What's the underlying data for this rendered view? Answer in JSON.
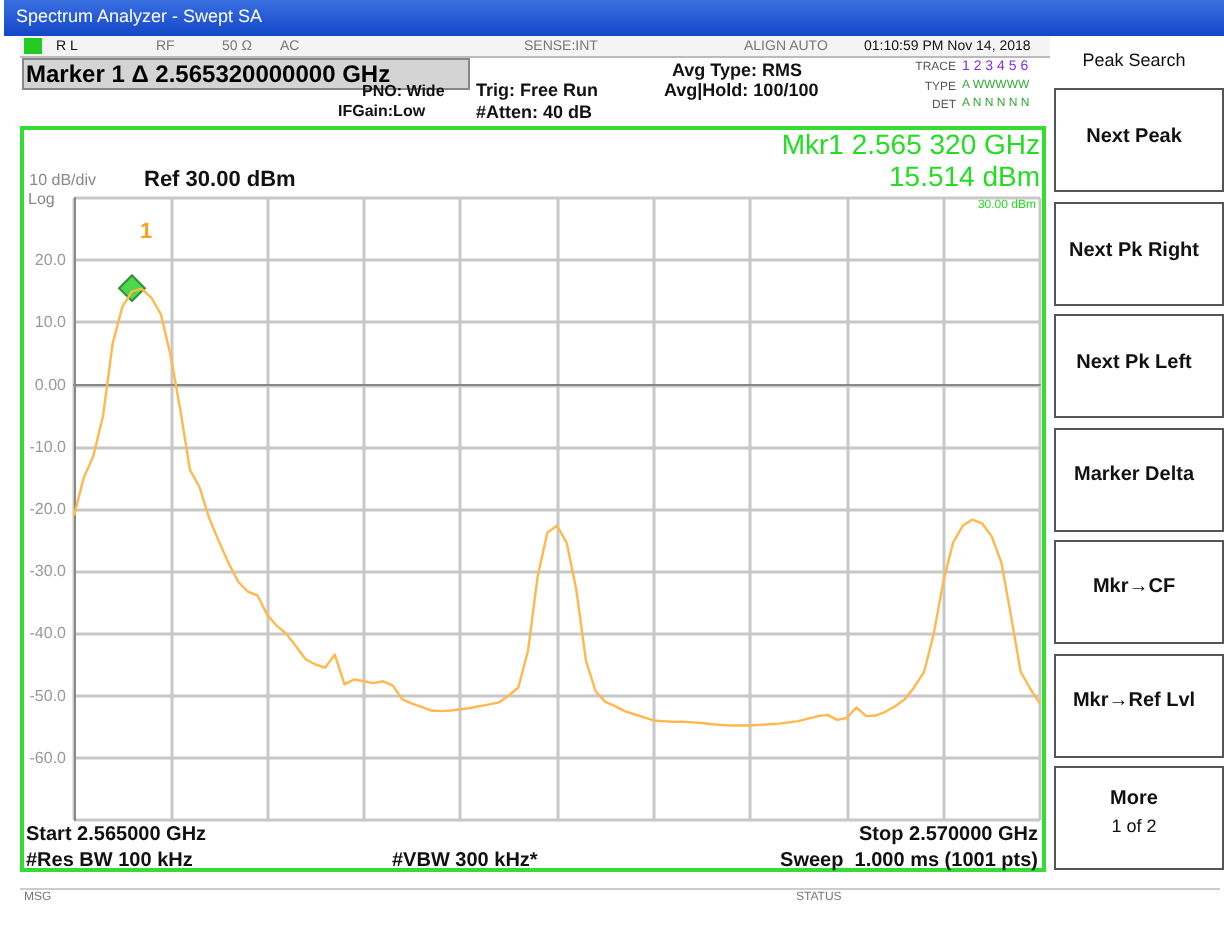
{
  "chart_data": {
    "type": "line",
    "title": "Spectrum Analyzer - Swept SA",
    "subtitle": "Marker 1 Δ 2.565320000000 GHz",
    "categories": [
      null,
      null,
      null,
      null,
      null,
      null,
      null,
      null,
      null,
      null,
      null,
      null,
      null,
      null,
      null,
      null,
      null,
      null,
      null,
      null,
      null,
      null,
      null,
      null,
      null,
      null,
      null,
      null,
      null,
      null,
      null,
      null,
      null,
      null,
      null,
      null,
      null,
      null,
      null,
      null,
      null,
      null,
      null,
      null,
      null,
      null,
      null,
      null,
      null,
      null,
      null,
      null,
      null,
      null,
      null,
      null,
      null,
      null,
      null,
      null,
      null,
      null,
      null,
      null,
      null,
      null,
      null,
      null,
      null,
      null,
      null,
      null,
      null,
      null,
      null,
      null,
      null,
      null,
      null,
      null,
      null,
      null,
      null,
      null,
      null,
      null,
      null,
      null,
      null,
      null,
      null,
      null,
      null,
      null,
      null,
      null,
      null,
      null,
      null,
      null,
      null
    ],
    "series": [
      {
        "color": "#ffb84d",
        "values": [
          -21.1,
          -15.0,
          -11.5,
          -5.1,
          6.6,
          12.5,
          15.0,
          15.4,
          14.0,
          11.3,
          4.7,
          -4.0,
          -13.7,
          -16.5,
          -21.5,
          -25.2,
          -28.7,
          -31.7,
          -33.3,
          -33.9,
          -37.0,
          -38.8,
          -40.1,
          -42.1,
          -44.2,
          -45.0,
          -45.5,
          -43.4,
          -48.2,
          -47.4,
          -47.7,
          -48.0,
          -47.7,
          -48.4,
          -50.6,
          -51.3,
          -51.8,
          -52.4,
          -52.5,
          -52.4,
          -52.2,
          -52.0,
          -51.7,
          -51.4,
          -51.1,
          -50.0,
          -48.7,
          -42.8,
          -30.8,
          -23.8,
          -22.7,
          -25.4,
          -33.0,
          -44.4,
          -49.3,
          -51.0,
          -51.7,
          -52.5,
          -53.0,
          -53.5,
          -54.0,
          -54.1,
          -54.2,
          -54.2,
          -54.3,
          -54.4,
          -54.6,
          -54.7,
          -54.8,
          -54.8,
          -54.8,
          -54.7,
          -54.6,
          -54.5,
          -54.3,
          -54.1,
          -53.7,
          -53.3,
          -53.1,
          -53.9,
          -53.6,
          -51.9,
          -53.3,
          -53.2,
          -52.6,
          -51.7,
          -50.6,
          -48.6,
          -46.2,
          -40.1,
          -31.6,
          -25.4,
          -22.7,
          -21.7,
          -22.3,
          -24.4,
          -28.6,
          -37.2,
          -46.2,
          -48.9,
          -51.3
        ]
      },
      {
        "type": "scatter",
        "color": "#22cc22",
        "marker": "diamond",
        "values": [
          null,
          null,
          null,
          null,
          null,
          null,
          15.5,
          null,
          null,
          null,
          null,
          null,
          null,
          null,
          null,
          null,
          null,
          null,
          null,
          null,
          null,
          null,
          null,
          null,
          null,
          null,
          null,
          null,
          null,
          null,
          null,
          null,
          null,
          null,
          null,
          null,
          null,
          null,
          null,
          null,
          null,
          null,
          null,
          null,
          null,
          null,
          null,
          null,
          null,
          null,
          null,
          null,
          null,
          null,
          null,
          null,
          null,
          null,
          null,
          null,
          null,
          null,
          null,
          null,
          null,
          null,
          null,
          null,
          null,
          null,
          null,
          null,
          null,
          null,
          null,
          null,
          null,
          null,
          null,
          null,
          null,
          null,
          null,
          null,
          null,
          null,
          null,
          null,
          null,
          null,
          null,
          null,
          null,
          null,
          null,
          null,
          null,
          null,
          null,
          null,
          null
        ]
      }
    ],
    "ylim": [
      -70,
      30
    ],
    "yticks": [
      {
        "value": -70,
        "label": null
      },
      {
        "value": -60,
        "label": "-60.0"
      },
      {
        "value": -50,
        "label": "-50.0"
      },
      {
        "value": -40,
        "label": "-40.0"
      },
      {
        "value": -30,
        "label": "-30.0"
      },
      {
        "value": -20,
        "label": "-20.0"
      },
      {
        "value": -10,
        "label": "-10.0"
      },
      {
        "value": 0,
        "label": "0.00"
      },
      {
        "value": 10,
        "label": "10.0"
      },
      {
        "value": 20,
        "label": "20.0"
      },
      {
        "value": 30,
        "label": null
      }
    ],
    "tick_labels": "y",
    "grid": true,
    "ylabel": "10 dB/div",
    "annotations": [
      "R L",
      "RF",
      "50 Ω",
      "AC",
      "SENSE:INT",
      "ALIGN AUTO",
      "01:10:59 PM Nov 14, 2018",
      "PNO: Wide",
      "IFGain:Low",
      "Trig: Free Run",
      "#Atten: 40 dB",
      "Avg Type: RMS",
      "Avg|Hold: 100/100",
      "TRACE",
      "TYPE",
      "DET",
      "1 2 3 4 5 6",
      "A WWWWW",
      "A N N N N N",
      "Mkr1 2.565 320 GHz",
      "15.514 dBm",
      "Ref 30.00 dBm",
      "Log",
      "30.00 dBm",
      "1",
      "Start 2.565000 GHz",
      "Stop 2.570000 GHz",
      "#Res BW 100 kHz",
      "#VBW 300 kHz*",
      "Sweep  1.000 ms (1001 pts)",
      "MSG",
      "STATUS",
      "Peak Search",
      "Next Peak",
      "Next Pk Right",
      "Next Pk Left",
      "Marker Delta",
      "Mkr→CF",
      "Mkr→Ref Lvl",
      "More",
      "1 of 2"
    ]
  }
}
